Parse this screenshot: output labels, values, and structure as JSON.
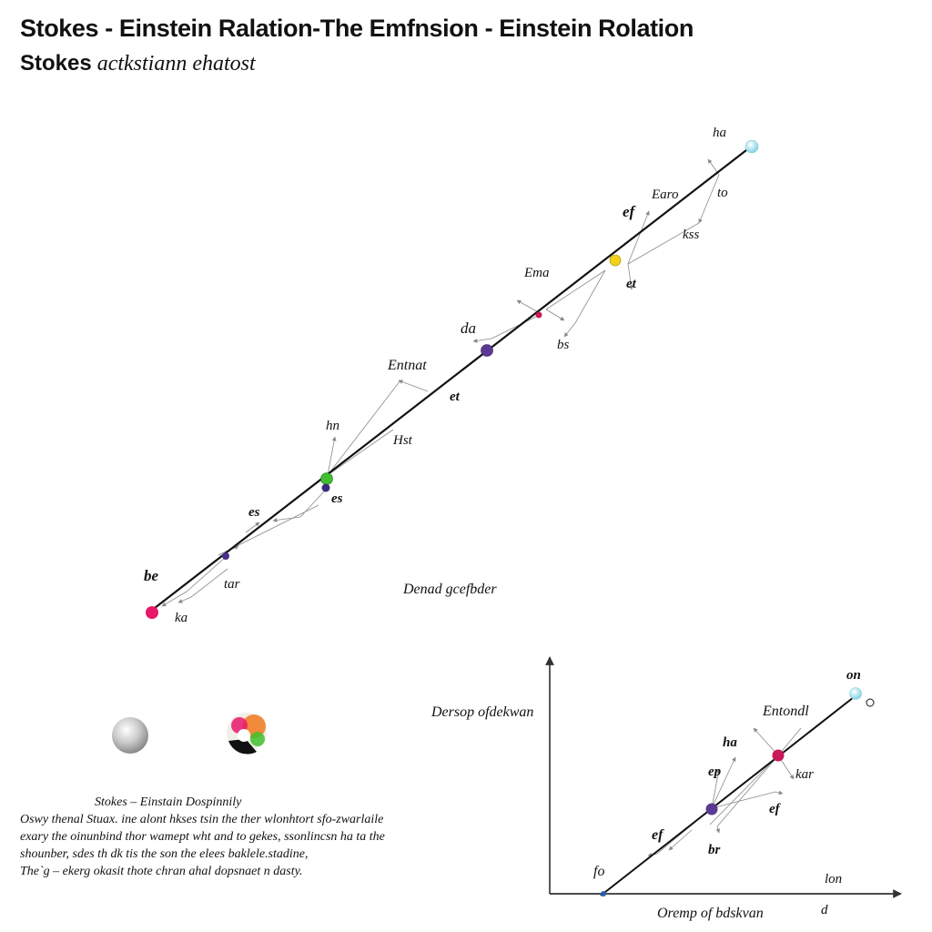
{
  "header": {
    "title": "Stokes - Einstein Ralation-The Emfnsion - Einstein Rolation",
    "subtitle_lead": "Stokes",
    "subtitle_rest": "actkstiann ehatost"
  },
  "main_diagram": {
    "labels": {
      "l1": "ha",
      "l2": "Earo",
      "l3": "to",
      "l4": "ef",
      "l5": "kss",
      "l6": "Ema",
      "l7": "et",
      "l8": "da",
      "l9": "bs",
      "l10": "Entnat",
      "l11": "et",
      "l12": "hn",
      "l13": "Hst",
      "l14": "es",
      "l15": "es",
      "l16": "be",
      "l17": "tar",
      "l18": "ka"
    },
    "center_label": "Denad gcefbder"
  },
  "inset_diagram": {
    "y_axis_label": "Dersop ofdekwan",
    "x_axis_label": "Oremp of bdskvan",
    "labels": {
      "l1": "on",
      "l2": "Entondl",
      "l3": "ha",
      "l4": "ep",
      "l5": "kar",
      "l6": "ef",
      "l7": "ef",
      "l8": "br",
      "l9": "fo",
      "l10": "lon",
      "l11": "d"
    }
  },
  "caption": {
    "title": "Stokes – Einstain Dospinnily",
    "lines": [
      "Oswy thenal Stuax. ine alont hkses tsin the ther wlonhtort sfo-zwarlaile",
      "exary the oinunbind thor wamept wht and to gekes, ssonlincsn ha ta the",
      "shounber, sdes th dk tis the son the elees baklele.stadine,",
      "The`g – ekerg okasit thote chran ahal dopsnaet n dasty."
    ]
  },
  "colors": {
    "pink": "#e8176b",
    "purple": "#5b3a93",
    "green": "#3fbf2f",
    "yellow": "#f2d21a",
    "cyan": "#aee8f2",
    "magenta": "#c8195a",
    "navy": "#3b2a7a",
    "blue": "#2a5db0"
  }
}
